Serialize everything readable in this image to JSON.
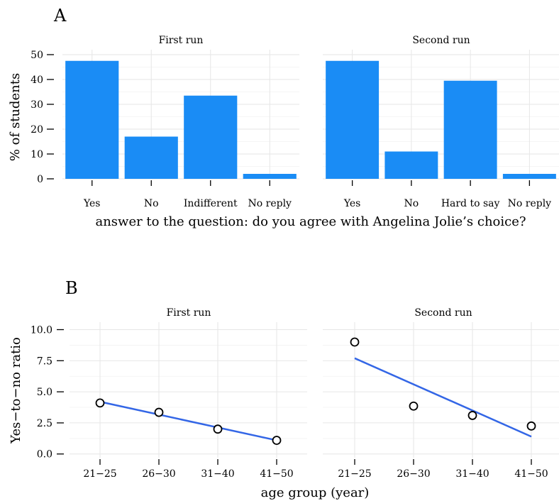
{
  "panels": {
    "a_label": "A",
    "b_label": "B"
  },
  "colors": {
    "bar": "#1a8cf5",
    "trend_line": "#3366e6",
    "point_stroke": "#000000"
  },
  "chart_data": [
    {
      "type": "bar",
      "title": "",
      "xlabel": "answer to the question: do you agree with Angelina Jolie’s choice?",
      "ylabel": "% of students",
      "ylim": [
        0,
        52
      ],
      "yticks": [
        0,
        10,
        20,
        30,
        40,
        50
      ],
      "grid": true,
      "facets": [
        {
          "title": "First run",
          "categories": [
            "Yes",
            "No",
            "Indifferent",
            "No reply"
          ],
          "values": [
            47.5,
            17,
            33.5,
            2
          ]
        },
        {
          "title": "Second run",
          "categories": [
            "Yes",
            "No",
            "Hard to say",
            "No reply"
          ],
          "values": [
            47.5,
            11,
            39.5,
            2
          ]
        }
      ]
    },
    {
      "type": "scatter",
      "title": "",
      "xlabel": "age group (year)",
      "ylabel": "Yes−to−no ratio",
      "ylim": [
        -0.3,
        10.6
      ],
      "yticks": [
        "0.0",
        "2.5",
        "5.0",
        "7.5",
        "10.0"
      ],
      "grid": true,
      "categories": [
        "21−25",
        "26−30",
        "31−40",
        "41−50"
      ],
      "facets": [
        {
          "title": "First run",
          "points": [
            4.1,
            3.35,
            2.0,
            1.1
          ],
          "trend": [
            4.2,
            1.1
          ]
        },
        {
          "title": "Second run",
          "points": [
            9.0,
            3.85,
            3.1,
            2.25
          ],
          "trend": [
            7.7,
            1.4
          ]
        }
      ]
    }
  ]
}
